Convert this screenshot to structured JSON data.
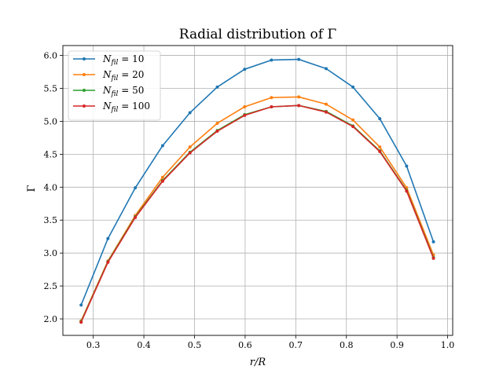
{
  "chart_data": {
    "type": "line",
    "title": "Radial distribution of Γ",
    "xlabel": "r/R",
    "ylabel": "Γ",
    "xlim": [
      0.24,
      1.01
    ],
    "ylim": [
      1.75,
      6.15
    ],
    "xticks": [
      0.3,
      0.4,
      0.5,
      0.6,
      0.7,
      0.8,
      0.9,
      1.0
    ],
    "xtick_labels": [
      "0.3",
      "0.4",
      "0.5",
      "0.6",
      "0.7",
      "0.8",
      "0.9",
      "1.0"
    ],
    "yticks": [
      2.0,
      2.5,
      3.0,
      3.5,
      4.0,
      4.5,
      5.0,
      5.5,
      6.0
    ],
    "ytick_labels": [
      "2.0",
      "2.5",
      "3.0",
      "3.5",
      "4.0",
      "4.5",
      "5.0",
      "5.5",
      "6.0"
    ],
    "grid": true,
    "legend_position": "top-left",
    "x": [
      0.276,
      0.329,
      0.383,
      0.437,
      0.491,
      0.545,
      0.599,
      0.652,
      0.706,
      0.76,
      0.813,
      0.866,
      0.919,
      0.972
    ],
    "series": [
      {
        "name": "N_fil = 10",
        "name_main": "N",
        "name_sub": "fil",
        "name_value": " = 10",
        "color": "#1f77b4",
        "values": [
          2.21,
          3.22,
          3.99,
          4.63,
          5.13,
          5.52,
          5.79,
          5.93,
          5.94,
          5.8,
          5.52,
          5.04,
          4.32,
          3.17
        ]
      },
      {
        "name": "N_fil = 20",
        "name_main": "N",
        "name_sub": "fil",
        "name_value": " = 20",
        "color": "#ff7f0e",
        "values": [
          1.97,
          2.88,
          3.57,
          4.15,
          4.61,
          4.97,
          5.22,
          5.36,
          5.37,
          5.26,
          5.02,
          4.61,
          3.99,
          2.97
        ]
      },
      {
        "name": "N_fil = 50",
        "name_main": "N",
        "name_sub": "fil",
        "name_value": " = 50",
        "color": "#2ca02c",
        "values": [
          1.96,
          2.87,
          3.55,
          4.1,
          4.53,
          4.86,
          5.1,
          5.22,
          5.24,
          5.15,
          4.93,
          4.55,
          3.95,
          2.93
        ]
      },
      {
        "name": "N_fil = 100",
        "name_main": "N",
        "name_sub": "fil",
        "name_value": " = 100",
        "color": "#d62728",
        "values": [
          1.95,
          2.86,
          3.54,
          4.09,
          4.52,
          4.85,
          5.09,
          5.22,
          5.24,
          5.14,
          4.92,
          4.54,
          3.94,
          2.92
        ]
      }
    ]
  }
}
